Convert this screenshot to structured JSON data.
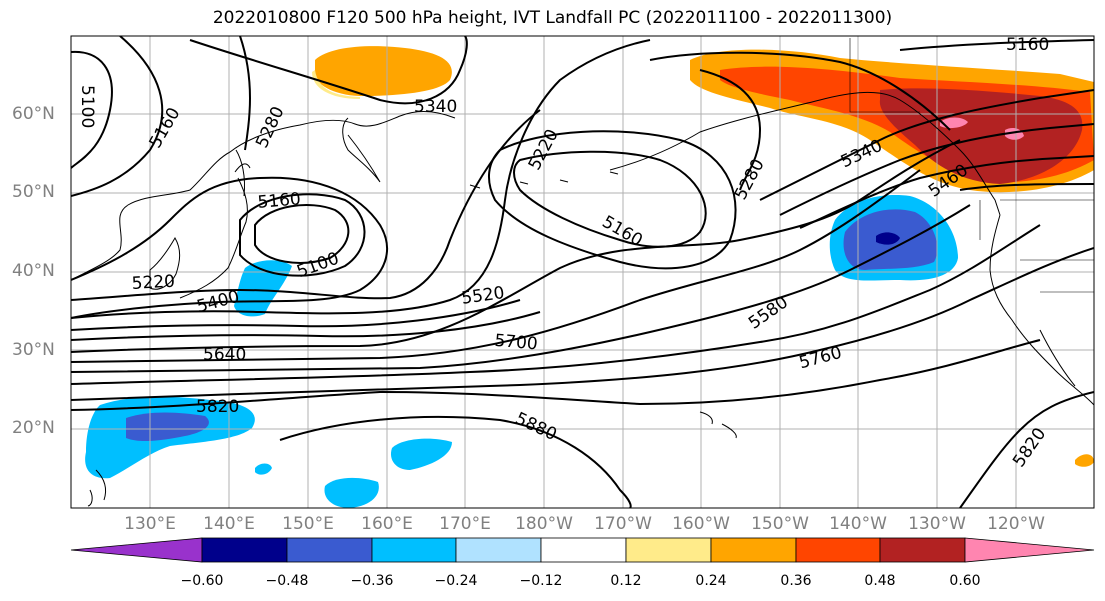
{
  "title": "2022010800 F120 500 hPa height, IVT Landfall PC (2022011100 - 2022011300)",
  "lat_labels": [
    "60°N",
    "50°N",
    "40°N",
    "30°N",
    "20°N"
  ],
  "lon_labels": [
    "130°E",
    "140°E",
    "150°E",
    "160°E",
    "170°E",
    "180°W",
    "170°W",
    "160°W",
    "150°W",
    "140°W",
    "130°W",
    "120°W"
  ],
  "contour_labels": [
    "5100",
    "5160",
    "5280",
    "5340",
    "5220",
    "5160",
    "5160",
    "5100",
    "5220",
    "5400",
    "5640",
    "5820",
    "5520",
    "5700",
    "5580",
    "5760",
    "5880",
    "5280",
    "5340",
    "5460",
    "5820",
    "5160"
  ],
  "colorbar": {
    "colors": [
      "#9932cc",
      "#00008b",
      "#3a5bd0",
      "#00bfff",
      "#b0e2ff",
      "#ffffff",
      "#ffeb8a",
      "#ffa500",
      "#ff4500",
      "#b22222",
      "#ff85b0"
    ],
    "tick_labels": [
      "−0.60",
      "−0.48",
      "−0.36",
      "−0.24",
      "−0.12",
      "0.12",
      "0.24",
      "0.36",
      "0.48",
      "0.60"
    ]
  }
}
